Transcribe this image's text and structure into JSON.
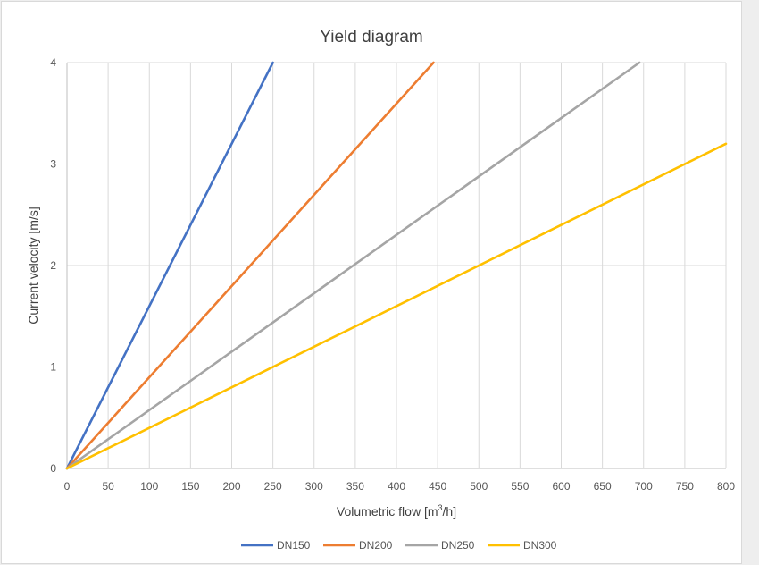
{
  "chart_data": {
    "type": "line",
    "title": "Yield diagram",
    "xlabel_main": "Volumetric flow [m",
    "xlabel_sup": "3",
    "xlabel_end": "/h]",
    "ylabel": "Current velocity [m/s]",
    "xlim": [
      0,
      800
    ],
    "ylim": [
      0,
      4
    ],
    "x_ticks": [
      0,
      50,
      100,
      150,
      200,
      250,
      300,
      350,
      400,
      450,
      500,
      550,
      600,
      650,
      700,
      750,
      800
    ],
    "y_ticks": [
      0,
      1,
      2,
      3,
      4
    ],
    "grid": true,
    "legend_position": "bottom",
    "series": [
      {
        "name": "DN150",
        "color": "#4472C4",
        "x": [
          0,
          250
        ],
        "y": [
          0,
          4.0
        ]
      },
      {
        "name": "DN200",
        "color": "#ED7D31",
        "x": [
          0,
          445
        ],
        "y": [
          0,
          4.0
        ]
      },
      {
        "name": "DN250",
        "color": "#A5A5A5",
        "x": [
          0,
          695
        ],
        "y": [
          0,
          4.0
        ]
      },
      {
        "name": "DN300",
        "color": "#FFC000",
        "x": [
          0,
          800
        ],
        "y": [
          0,
          3.2
        ]
      }
    ]
  }
}
